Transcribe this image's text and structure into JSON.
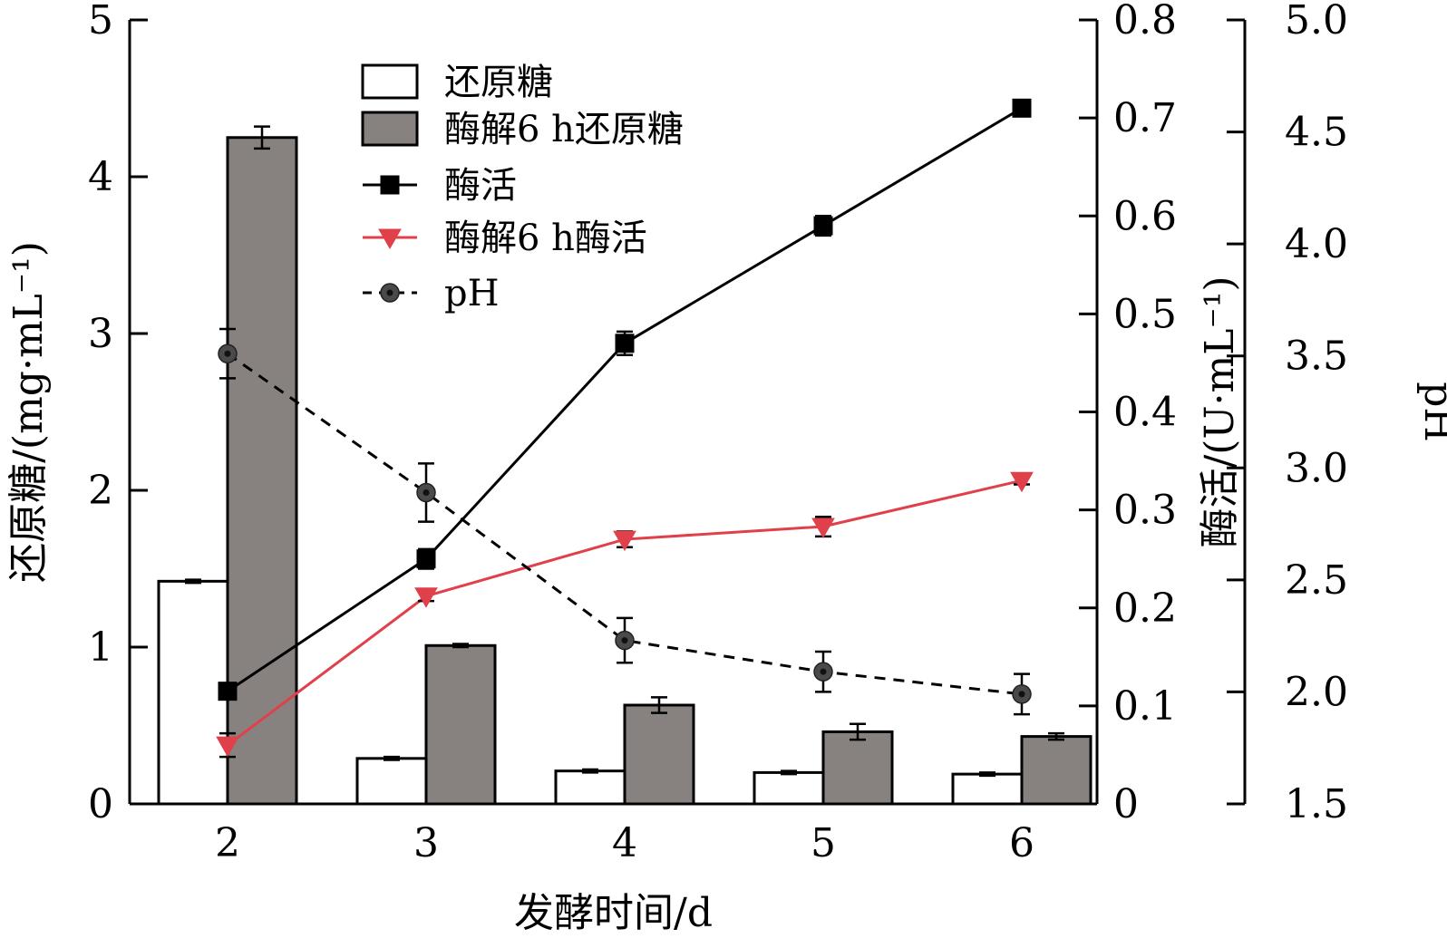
{
  "chart_data": {
    "type": "bar",
    "xlabel": "发酵时间/d",
    "categories": [
      "2",
      "3",
      "4",
      "5",
      "6"
    ],
    "axes": {
      "left": {
        "label": "还原糖/(mg·mL⁻¹)",
        "range": [
          0,
          5
        ],
        "ticks": [
          "0",
          "1",
          "2",
          "3",
          "4",
          "5"
        ]
      },
      "right1": {
        "label": "酶活/(U·mL⁻¹)",
        "range": [
          0,
          0.8
        ],
        "ticks": [
          "0",
          "0.1",
          "0.2",
          "0.3",
          "0.4",
          "0.5",
          "0.6",
          "0.7",
          "0.8"
        ]
      },
      "right2": {
        "label": "pH",
        "range": [
          1.5,
          5.0
        ],
        "ticks": [
          "1.5",
          "2.0",
          "2.5",
          "3.0",
          "3.5",
          "4.0",
          "4.5",
          "5.0"
        ]
      }
    },
    "legend_position": "top-center",
    "series": [
      {
        "name": "还原糖",
        "type": "bar",
        "axis": "left",
        "fill": "#ffffff",
        "values": [
          1.42,
          0.29,
          0.21,
          0.2,
          0.19
        ],
        "errors": [
          0.01,
          0.01,
          0.01,
          0.01,
          0.01
        ]
      },
      {
        "name": "酶解6 h还原糖",
        "type": "bar",
        "axis": "left",
        "fill": "#878280",
        "values": [
          4.25,
          1.01,
          0.63,
          0.46,
          0.43
        ],
        "errors": [
          0.07,
          0.01,
          0.05,
          0.05,
          0.02
        ]
      },
      {
        "name": "酶活",
        "type": "line",
        "axis": "right1",
        "color": "#000000",
        "marker": "square",
        "dash": "solid",
        "values": [
          0.115,
          0.25,
          0.47,
          0.59,
          0.71
        ],
        "errors": [
          0.008,
          0.01,
          0.012,
          0.01,
          0.006
        ]
      },
      {
        "name": "酶解6 h酶活",
        "type": "line",
        "axis": "right1",
        "color": "#e0404a",
        "marker": "triangle-down",
        "dash": "solid",
        "values": [
          0.06,
          0.212,
          0.27,
          0.283,
          0.33
        ],
        "errors": [
          0.012,
          0.005,
          0.008,
          0.01,
          0.004
        ]
      },
      {
        "name": "pH",
        "type": "line",
        "axis": "right2",
        "color": "#000000",
        "marker": "circle",
        "dash": "dashed",
        "values": [
          3.51,
          2.89,
          2.23,
          2.09,
          1.99
        ],
        "errors": [
          0.11,
          0.13,
          0.1,
          0.09,
          0.09
        ]
      }
    ]
  }
}
